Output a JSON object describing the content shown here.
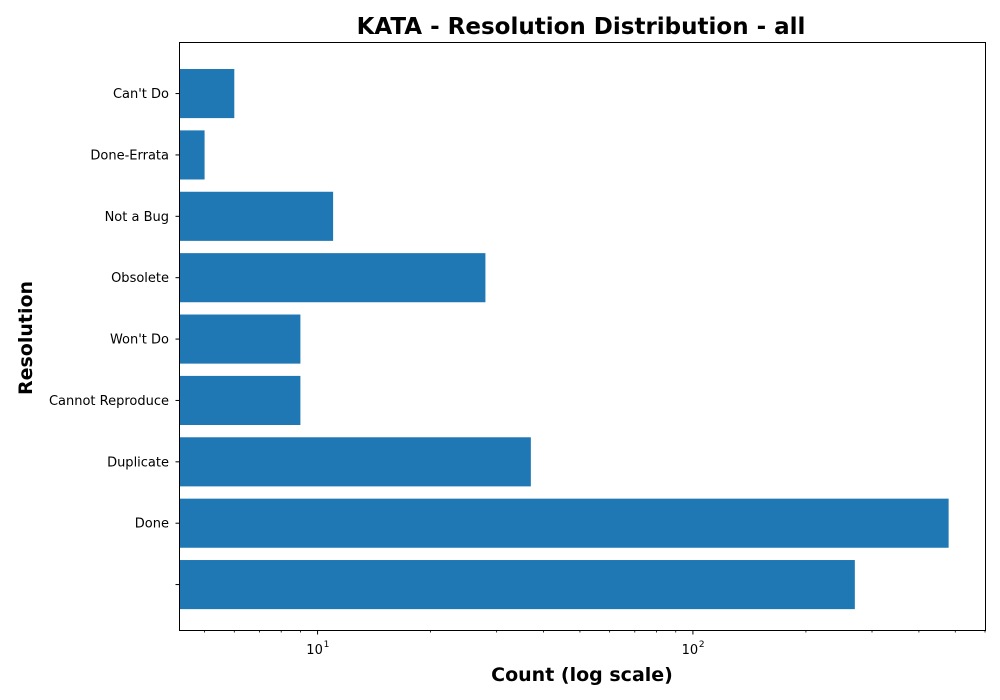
{
  "chart_data": {
    "type": "bar",
    "orientation": "horizontal",
    "title": "KATA - Resolution Distribution - all",
    "xlabel": "Count (log scale)",
    "ylabel": "Resolution",
    "x_scale": "log",
    "xlim": [
      4.3,
      600
    ],
    "x_ticks": [
      {
        "value": 10,
        "base": "10",
        "exp": "1"
      },
      {
        "value": 100,
        "base": "10",
        "exp": "2"
      }
    ],
    "categories": [
      "Can't Do",
      "Done-Errata",
      "Not a Bug",
      "Obsolete",
      "Won't Do",
      "Cannot Reproduce",
      "Duplicate",
      "Done",
      ""
    ],
    "values": [
      6,
      5,
      11,
      28,
      9,
      9,
      37,
      480,
      270
    ],
    "bar_color": "#1f77b4",
    "grid": false,
    "legend": "none"
  }
}
